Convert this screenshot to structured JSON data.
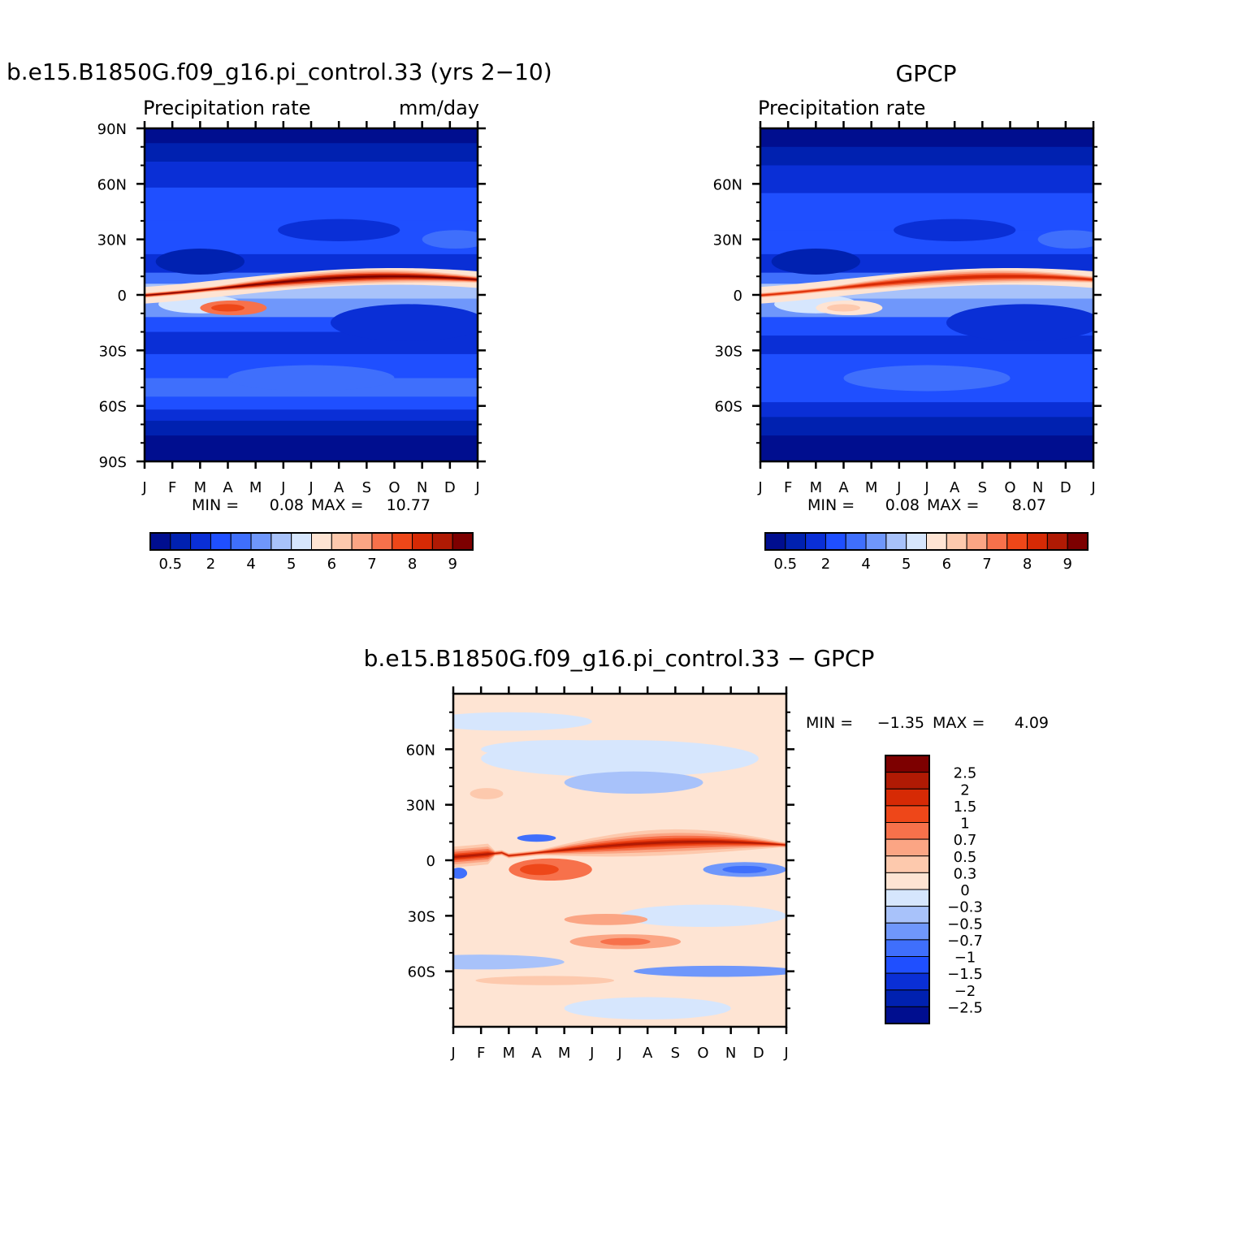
{
  "colors": {
    "precip_scale": [
      "#000e8f",
      "#0021b0",
      "#0a2fd6",
      "#1f4fff",
      "#3f6ffc",
      "#6f97fb",
      "#a8c2fa",
      "#d6e6fd",
      "#fee4d3",
      "#fdc9ad",
      "#fba584",
      "#f7714b",
      "#ee4719",
      "#d62a05",
      "#b01a04",
      "#7d0000"
    ],
    "diff_scale": [
      "#000e8f",
      "#0021b0",
      "#0a2fd6",
      "#1f4fff",
      "#3f6ffc",
      "#6f97fb",
      "#a8c2fa",
      "#d6e6fd",
      "#fee4d3",
      "#fdc9ad",
      "#fba584",
      "#f7714b",
      "#ee4719",
      "#d62a05",
      "#b01a04",
      "#7d0000"
    ]
  },
  "chart_data": [
    {
      "type": "heatmap",
      "title": "b.e15.B1850G.f09_g16.pi_control.33 (yrs 2-10)",
      "left_label": "Precipitation rate",
      "right_label": "mm/day",
      "x_ticks": [
        "J",
        "F",
        "M",
        "A",
        "M",
        "J",
        "J",
        "A",
        "S",
        "O",
        "N",
        "D",
        "J"
      ],
      "y_ticks": [
        "90N",
        "60N",
        "30N",
        "0",
        "30S",
        "60S",
        "90S"
      ],
      "ylim": [
        -90,
        90
      ],
      "stats": {
        "min_label": "MIN =",
        "min": "0.08",
        "max_label": "MAX =",
        "max": "10.77"
      },
      "colorbar": {
        "orientation": "horizontal",
        "labels": [
          "0.5",
          "2",
          "4",
          "5",
          "6",
          "7",
          "8",
          "9"
        ]
      },
      "data_description": {
        "itcz_peak_value": 10.77,
        "itcz_peak_month": "Aug",
        "itcz_lat_jan": 5,
        "itcz_lat_aug": 10,
        "sh_band_feb_mar_lat": -5,
        "polar_min": 0.08
      }
    },
    {
      "type": "heatmap",
      "title": "GPCP",
      "left_label": "Precipitation rate",
      "right_label": "",
      "x_ticks": [
        "J",
        "F",
        "M",
        "A",
        "M",
        "J",
        "J",
        "A",
        "S",
        "O",
        "N",
        "D",
        "J"
      ],
      "y_ticks": [
        "60N",
        "30N",
        "0",
        "30S",
        "60S"
      ],
      "ylim": [
        -90,
        90
      ],
      "stats": {
        "min_label": "MIN =",
        "min": "0.08",
        "max_label": "MAX =",
        "max": "8.07"
      },
      "colorbar": {
        "orientation": "horizontal",
        "labels": [
          "0.5",
          "2",
          "4",
          "5",
          "6",
          "7",
          "8",
          "9"
        ]
      },
      "data_description": {
        "itcz_peak_value": 8.07,
        "itcz_peak_month": "Aug",
        "polar_min": 0.08
      }
    },
    {
      "type": "heatmap",
      "title": "b.e15.B1850G.f09_g16.pi_control.33 - GPCP",
      "left_label": "",
      "right_label": "",
      "x_ticks": [
        "J",
        "F",
        "M",
        "A",
        "M",
        "J",
        "J",
        "A",
        "S",
        "O",
        "N",
        "D",
        "J"
      ],
      "y_ticks": [
        "60N",
        "30N",
        "0",
        "30S",
        "60S"
      ],
      "ylim": [
        -90,
        90
      ],
      "stats": {
        "min_label": "MIN =",
        "min": "-1.35",
        "max_label": "MAX =",
        "max": "4.09"
      },
      "colorbar": {
        "orientation": "vertical",
        "labels": [
          "2.5",
          "2",
          "1.5",
          "1",
          "0.7",
          "0.5",
          "0.3",
          "0",
          "-0.3",
          "-0.5",
          "-0.7",
          "-1",
          "-1.5",
          "-2",
          "-2.5"
        ]
      },
      "data_description": {
        "max_diff": 4.09,
        "min_diff": -1.35
      }
    }
  ]
}
